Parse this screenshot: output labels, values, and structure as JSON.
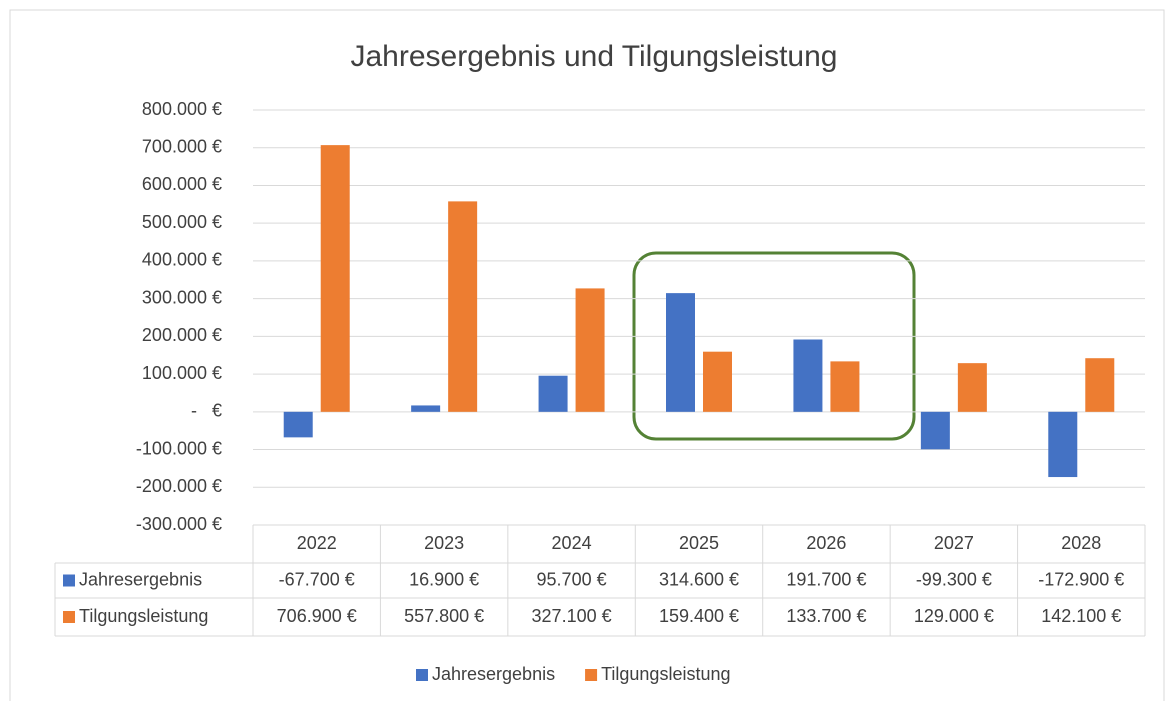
{
  "chart_data": {
    "type": "bar",
    "title": "Jahresergebnis und Tilgungsleistung",
    "categories": [
      "2022",
      "2023",
      "2024",
      "2025",
      "2026",
      "2027",
      "2028"
    ],
    "series": [
      {
        "name": "Jahresergebnis",
        "color": "#4472c4",
        "values": [
          -67700,
          16900,
          95700,
          314600,
          191700,
          -99300,
          -172900
        ],
        "value_labels": [
          "-67.700 €",
          "16.900 €",
          "95.700 €",
          "314.600 €",
          "191.700 €",
          "-99.300 €",
          "-172.900 €"
        ]
      },
      {
        "name": "Tilgungsleistung",
        "color": "#ed7d31",
        "values": [
          706900,
          557800,
          327100,
          159400,
          133700,
          129000,
          142100
        ],
        "value_labels": [
          "706.900 €",
          "557.800 €",
          "327.100 €",
          "159.400 €",
          "133.700 €",
          "129.000 €",
          "142.100 €"
        ]
      }
    ],
    "ylim": [
      -300000,
      800000
    ],
    "yticks": [
      {
        "value": -300000,
        "label": "-300.000 €"
      },
      {
        "value": -200000,
        "label": "-200.000 €"
      },
      {
        "value": -100000,
        "label": "-100.000 €"
      },
      {
        "value": 0,
        "label": "-   €"
      },
      {
        "value": 100000,
        "label": "100.000 €"
      },
      {
        "value": 200000,
        "label": "200.000 €"
      },
      {
        "value": 300000,
        "label": "300.000 €"
      },
      {
        "value": 400000,
        "label": "400.000 €"
      },
      {
        "value": 500000,
        "label": "500.000 €"
      },
      {
        "value": 600000,
        "label": "600.000 €"
      },
      {
        "value": 700000,
        "label": "700.000 €"
      },
      {
        "value": 800000,
        "label": "800.000 €"
      }
    ],
    "grid": true,
    "legend": "bottom"
  }
}
